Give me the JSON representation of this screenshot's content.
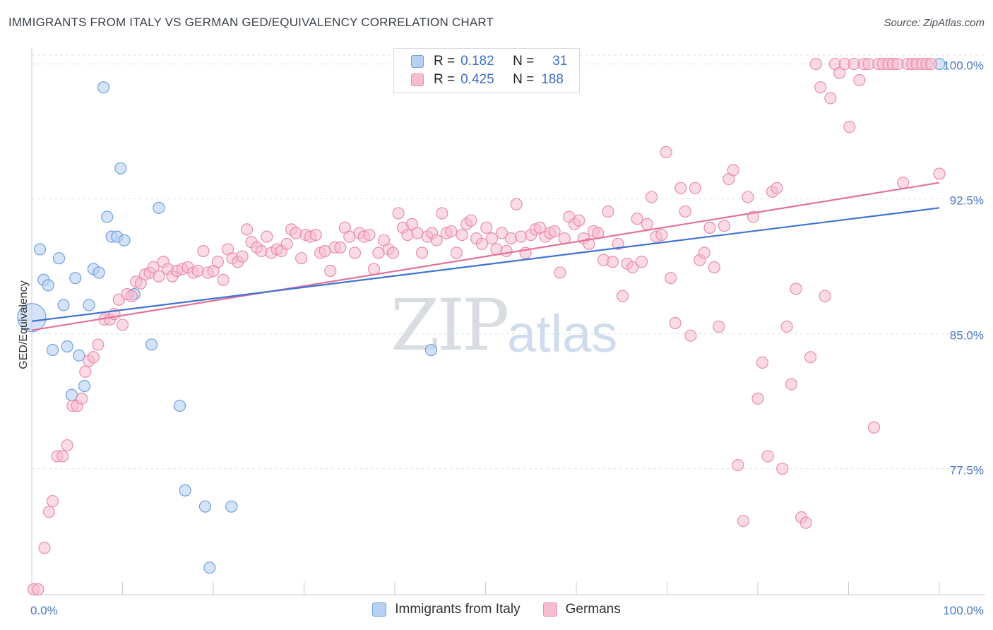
{
  "header": {
    "title": "IMMIGRANTS FROM ITALY VS GERMAN GED/EQUIVALENCY CORRELATION CHART",
    "source": "Source: ZipAtlas.com"
  },
  "watermark": {
    "zip": "ZIP",
    "atlas": "atlas"
  },
  "legend": {
    "rows": [
      {
        "r_label": "R =",
        "r_value": "0.182",
        "n_label": "N =",
        "n_value": "31"
      },
      {
        "r_label": "R =",
        "r_value": "0.425",
        "n_label": "N =",
        "n_value": "188"
      }
    ]
  },
  "colors": {
    "italy_fill": "#b7d1f2",
    "italy_stroke": "#6f9fe0",
    "italy_line": "#3f73cf",
    "german_fill": "#f6bcd0",
    "german_stroke": "#e98cae",
    "german_line": "#e2729a",
    "grid": "#dcdfe4",
    "tick_text": "#4a78c7"
  },
  "chart_data": {
    "type": "scatter",
    "title": "IMMIGRANTS FROM ITALY VS GERMAN GED/EQUIVALENCY CORRELATION CHART",
    "ylabel": "GED/Equivalency",
    "xlabel": "",
    "xlim": [
      0,
      100
    ],
    "ylim": [
      70.5,
      101.2
    ],
    "x_tick_labels": [
      {
        "value": 0,
        "label": "0.0%"
      },
      {
        "value": 100,
        "label": "100.0%"
      }
    ],
    "y_tick_labels": [
      {
        "value": 100,
        "label": "100.0%"
      },
      {
        "value": 92.5,
        "label": "92.5%"
      },
      {
        "value": 85,
        "label": "85.0%"
      },
      {
        "value": 77.5,
        "label": "77.5%"
      }
    ],
    "grid": "horizontal dashed",
    "legend_position": "top-center",
    "series": [
      {
        "name": "Immigrants from Italy",
        "r": 0.182,
        "n": 31,
        "trend": [
          [
            0,
            85.7
          ],
          [
            100,
            92.0
          ]
        ],
        "points": [
          [
            0,
            85.9
          ],
          [
            0.9,
            89.7
          ],
          [
            1.3,
            88.0
          ],
          [
            1.8,
            87.7
          ],
          [
            2.3,
            84.1
          ],
          [
            3.0,
            89.2
          ],
          [
            3.5,
            86.6
          ],
          [
            3.9,
            84.3
          ],
          [
            4.4,
            81.6
          ],
          [
            4.8,
            88.1
          ],
          [
            5.2,
            83.8
          ],
          [
            5.8,
            82.1
          ],
          [
            6.3,
            86.6
          ],
          [
            6.8,
            88.6
          ],
          [
            7.4,
            88.4
          ],
          [
            7.9,
            98.7
          ],
          [
            8.3,
            91.5
          ],
          [
            8.8,
            90.4
          ],
          [
            9.4,
            90.4
          ],
          [
            9.8,
            94.2
          ],
          [
            10.2,
            90.2
          ],
          [
            11.3,
            87.2
          ],
          [
            13.2,
            84.4
          ],
          [
            14.0,
            92.0
          ],
          [
            16.3,
            81.0
          ],
          [
            16.9,
            76.3
          ],
          [
            19.1,
            75.4
          ],
          [
            19.6,
            72.0
          ],
          [
            22.0,
            75.4
          ],
          [
            44.0,
            84.1
          ],
          [
            100,
            100.0
          ]
        ]
      },
      {
        "name": "Germans",
        "r": 0.425,
        "n": 188,
        "trend": [
          [
            0,
            85.2
          ],
          [
            100,
            93.4
          ]
        ],
        "points": [
          [
            0.2,
            70.8
          ],
          [
            0.7,
            70.8
          ],
          [
            1.4,
            73.1
          ],
          [
            1.9,
            75.1
          ],
          [
            2.3,
            75.7
          ],
          [
            2.8,
            78.2
          ],
          [
            3.4,
            78.2
          ],
          [
            3.9,
            78.8
          ],
          [
            4.5,
            81.0
          ],
          [
            5.0,
            81.0
          ],
          [
            5.5,
            81.4
          ],
          [
            5.9,
            82.9
          ],
          [
            6.3,
            83.5
          ],
          [
            6.8,
            83.7
          ],
          [
            7.3,
            84.4
          ],
          [
            8.0,
            85.8
          ],
          [
            8.6,
            85.8
          ],
          [
            9.1,
            86.1
          ],
          [
            9.6,
            86.9
          ],
          [
            10.0,
            85.5
          ],
          [
            10.5,
            87.2
          ],
          [
            11.0,
            87.1
          ],
          [
            11.5,
            87.9
          ],
          [
            12.0,
            87.8
          ],
          [
            12.5,
            88.3
          ],
          [
            13.0,
            88.4
          ],
          [
            13.4,
            88.7
          ],
          [
            14.0,
            88.2
          ],
          [
            14.5,
            89.0
          ],
          [
            15.0,
            88.6
          ],
          [
            15.5,
            88.2
          ],
          [
            16.0,
            88.5
          ],
          [
            16.6,
            88.6
          ],
          [
            17.2,
            88.7
          ],
          [
            17.8,
            88.4
          ],
          [
            18.3,
            88.5
          ],
          [
            18.9,
            89.6
          ],
          [
            19.4,
            88.4
          ],
          [
            20.0,
            88.5
          ],
          [
            20.5,
            89.0
          ],
          [
            21.1,
            88.0
          ],
          [
            21.6,
            89.7
          ],
          [
            22.1,
            89.2
          ],
          [
            22.7,
            89.0
          ],
          [
            23.2,
            89.3
          ],
          [
            23.7,
            90.8
          ],
          [
            24.2,
            90.1
          ],
          [
            24.8,
            89.8
          ],
          [
            25.3,
            89.6
          ],
          [
            25.9,
            90.4
          ],
          [
            26.4,
            89.5
          ],
          [
            27.0,
            89.7
          ],
          [
            27.5,
            89.6
          ],
          [
            28.1,
            90.0
          ],
          [
            28.6,
            90.8
          ],
          [
            29.1,
            90.6
          ],
          [
            29.7,
            89.2
          ],
          [
            30.2,
            90.5
          ],
          [
            30.7,
            90.4
          ],
          [
            31.3,
            90.5
          ],
          [
            31.8,
            89.5
          ],
          [
            32.3,
            89.6
          ],
          [
            32.9,
            88.5
          ],
          [
            33.4,
            89.8
          ],
          [
            34.0,
            89.8
          ],
          [
            34.5,
            90.9
          ],
          [
            35.0,
            90.4
          ],
          [
            35.6,
            89.5
          ],
          [
            36.1,
            90.6
          ],
          [
            36.6,
            90.4
          ],
          [
            37.2,
            90.5
          ],
          [
            37.7,
            88.6
          ],
          [
            38.2,
            89.5
          ],
          [
            38.8,
            90.2
          ],
          [
            39.3,
            89.7
          ],
          [
            39.8,
            89.5
          ],
          [
            40.4,
            91.7
          ],
          [
            40.9,
            90.9
          ],
          [
            41.4,
            90.5
          ],
          [
            41.9,
            91.1
          ],
          [
            42.5,
            90.6
          ],
          [
            43.0,
            89.5
          ],
          [
            43.6,
            90.4
          ],
          [
            44.1,
            90.6
          ],
          [
            44.6,
            90.2
          ],
          [
            45.2,
            91.7
          ],
          [
            45.7,
            90.6
          ],
          [
            46.2,
            90.7
          ],
          [
            46.8,
            89.5
          ],
          [
            47.4,
            90.5
          ],
          [
            47.9,
            91.1
          ],
          [
            48.4,
            91.3
          ],
          [
            49.0,
            90.3
          ],
          [
            49.6,
            90.0
          ],
          [
            50.1,
            90.9
          ],
          [
            50.7,
            90.3
          ],
          [
            51.2,
            89.7
          ],
          [
            51.8,
            90.6
          ],
          [
            52.3,
            89.6
          ],
          [
            52.8,
            90.3
          ],
          [
            53.4,
            92.2
          ],
          [
            53.9,
            90.4
          ],
          [
            54.4,
            89.5
          ],
          [
            55.0,
            90.5
          ],
          [
            55.5,
            90.8
          ],
          [
            56.0,
            90.9
          ],
          [
            56.6,
            90.4
          ],
          [
            57.1,
            90.6
          ],
          [
            57.6,
            90.7
          ],
          [
            58.2,
            88.4
          ],
          [
            58.7,
            90.3
          ],
          [
            59.2,
            91.5
          ],
          [
            59.8,
            91.1
          ],
          [
            60.3,
            91.3
          ],
          [
            60.8,
            90.3
          ],
          [
            61.4,
            90.0
          ],
          [
            61.9,
            90.7
          ],
          [
            62.4,
            90.6
          ],
          [
            63.0,
            89.1
          ],
          [
            63.5,
            91.8
          ],
          [
            64.0,
            89.0
          ],
          [
            64.6,
            90.0
          ],
          [
            65.1,
            87.1
          ],
          [
            65.6,
            88.9
          ],
          [
            66.2,
            88.7
          ],
          [
            66.7,
            91.4
          ],
          [
            67.2,
            89.0
          ],
          [
            67.8,
            91.1
          ],
          [
            68.3,
            92.6
          ],
          [
            68.8,
            90.4
          ],
          [
            69.4,
            90.5
          ],
          [
            69.9,
            95.1
          ],
          [
            70.4,
            88.1
          ],
          [
            70.9,
            85.6
          ],
          [
            71.5,
            93.1
          ],
          [
            72.0,
            91.8
          ],
          [
            72.6,
            84.9
          ],
          [
            73.1,
            93.1
          ],
          [
            73.6,
            89.1
          ],
          [
            74.1,
            89.5
          ],
          [
            74.7,
            90.9
          ],
          [
            75.2,
            88.7
          ],
          [
            75.7,
            85.4
          ],
          [
            76.3,
            91.0
          ],
          [
            76.8,
            93.6
          ],
          [
            77.3,
            94.1
          ],
          [
            77.8,
            77.7
          ],
          [
            78.4,
            74.6
          ],
          [
            78.9,
            92.6
          ],
          [
            79.5,
            91.5
          ],
          [
            80.0,
            81.4
          ],
          [
            80.5,
            83.4
          ],
          [
            81.1,
            78.2
          ],
          [
            81.6,
            92.9
          ],
          [
            82.1,
            93.1
          ],
          [
            82.7,
            77.5
          ],
          [
            83.2,
            85.4
          ],
          [
            83.7,
            82.2
          ],
          [
            84.2,
            87.5
          ],
          [
            84.8,
            74.8
          ],
          [
            85.3,
            74.5
          ],
          [
            85.8,
            83.7
          ],
          [
            86.4,
            100.0
          ],
          [
            86.9,
            98.7
          ],
          [
            87.4,
            87.1
          ],
          [
            88.0,
            98.1
          ],
          [
            88.5,
            100.0
          ],
          [
            89.0,
            99.5
          ],
          [
            89.6,
            100.0
          ],
          [
            90.1,
            96.5
          ],
          [
            90.6,
            100.0
          ],
          [
            91.2,
            99.1
          ],
          [
            91.7,
            100.0
          ],
          [
            92.2,
            100.0
          ],
          [
            92.8,
            79.8
          ],
          [
            93.3,
            100.0
          ],
          [
            93.8,
            100.0
          ],
          [
            94.4,
            100.0
          ],
          [
            94.9,
            100.0
          ],
          [
            95.4,
            100.0
          ],
          [
            96.0,
            93.4
          ],
          [
            96.5,
            100.0
          ],
          [
            97.0,
            100.0
          ],
          [
            97.5,
            100.0
          ],
          [
            98.1,
            100.0
          ],
          [
            98.6,
            100.0
          ],
          [
            99.1,
            100.0
          ],
          [
            100,
            93.9
          ]
        ]
      }
    ]
  },
  "bottom_legend": {
    "items": [
      {
        "label": "Immigrants from Italy"
      },
      {
        "label": "Germans"
      }
    ]
  }
}
